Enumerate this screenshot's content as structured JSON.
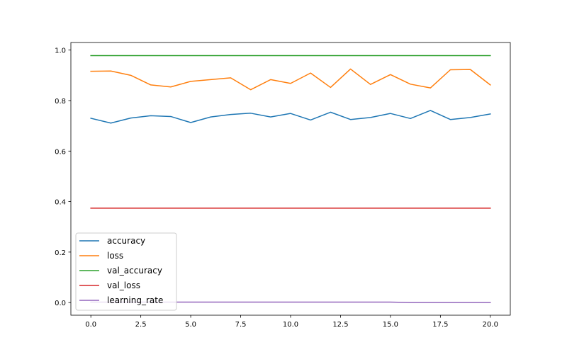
{
  "chart_data": {
    "type": "line",
    "title": "",
    "xlabel": "",
    "ylabel": "",
    "xlim": [
      -1.0,
      21.0
    ],
    "ylim": [
      -0.05,
      1.03
    ],
    "x_ticks": [
      0.0,
      2.5,
      5.0,
      7.5,
      10.0,
      12.5,
      15.0,
      17.5,
      20.0
    ],
    "x_tick_labels": [
      "0.0",
      "2.5",
      "5.0",
      "7.5",
      "10.0",
      "12.5",
      "15.0",
      "17.5",
      "20.0"
    ],
    "y_ticks": [
      0.0,
      0.2,
      0.4,
      0.6,
      0.8,
      1.0
    ],
    "y_tick_labels": [
      "0.0",
      "0.2",
      "0.4",
      "0.6",
      "0.8",
      "1.0"
    ],
    "grid": false,
    "legend_position": "lower-left",
    "x": [
      0,
      1,
      2,
      3,
      4,
      5,
      6,
      7,
      8,
      9,
      10,
      11,
      12,
      13,
      14,
      15,
      16,
      17,
      18,
      19,
      20
    ],
    "series": [
      {
        "name": "accuracy",
        "color": "#1f77b4",
        "values": [
          0.73,
          0.711,
          0.731,
          0.74,
          0.737,
          0.713,
          0.735,
          0.745,
          0.75,
          0.735,
          0.749,
          0.723,
          0.754,
          0.725,
          0.733,
          0.749,
          0.729,
          0.761,
          0.725,
          0.733,
          0.747
        ]
      },
      {
        "name": "loss",
        "color": "#ff7f0e",
        "values": [
          0.916,
          0.917,
          0.9,
          0.862,
          0.854,
          0.876,
          0.883,
          0.89,
          0.843,
          0.883,
          0.868,
          0.909,
          0.852,
          0.925,
          0.864,
          0.903,
          0.865,
          0.85,
          0.922,
          0.923,
          0.862
        ]
      },
      {
        "name": "val_accuracy",
        "color": "#2ca02c",
        "values": [
          0.978,
          0.978,
          0.978,
          0.978,
          0.978,
          0.978,
          0.978,
          0.978,
          0.978,
          0.978,
          0.978,
          0.978,
          0.978,
          0.978,
          0.978,
          0.978,
          0.978,
          0.978,
          0.978,
          0.978,
          0.978
        ]
      },
      {
        "name": "val_loss",
        "color": "#d62728",
        "values": [
          0.374,
          0.374,
          0.374,
          0.374,
          0.374,
          0.374,
          0.374,
          0.374,
          0.374,
          0.374,
          0.374,
          0.374,
          0.374,
          0.374,
          0.374,
          0.374,
          0.374,
          0.374,
          0.374,
          0.374,
          0.374
        ]
      },
      {
        "name": "learning_rate",
        "color": "#9467bd",
        "values": [
          0.002,
          0.002,
          0.002,
          0.002,
          0.002,
          0.002,
          0.002,
          0.002,
          0.002,
          0.002,
          0.002,
          0.002,
          0.002,
          0.002,
          0.002,
          0.002,
          0.0,
          0.0,
          0.0,
          0.0,
          0.0
        ]
      }
    ]
  }
}
